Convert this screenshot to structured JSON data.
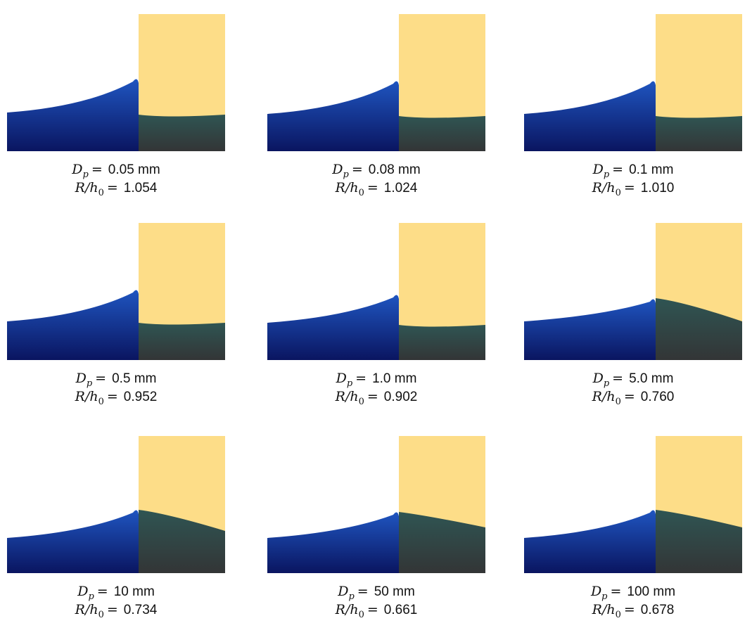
{
  "labels": {
    "dp_symbol": "D",
    "dp_sub": "p",
    "ratio_symbol": "R/h",
    "ratio_sub": "0",
    "equals": "="
  },
  "panels": [
    {
      "dp": "0.05 mm",
      "ratio": "1.054"
    },
    {
      "dp": "0.08 mm",
      "ratio": "1.024"
    },
    {
      "dp": "0.1 mm",
      "ratio": "1.010"
    },
    {
      "dp": "0.5 mm",
      "ratio": "0.952"
    },
    {
      "dp": "1.0 mm",
      "ratio": "0.902"
    },
    {
      "dp": "5.0 mm",
      "ratio": "0.760"
    },
    {
      "dp": "10 mm",
      "ratio": "0.734"
    },
    {
      "dp": "50 mm",
      "ratio": "0.661"
    },
    {
      "dp": "100 mm",
      "ratio": "0.678"
    }
  ]
}
